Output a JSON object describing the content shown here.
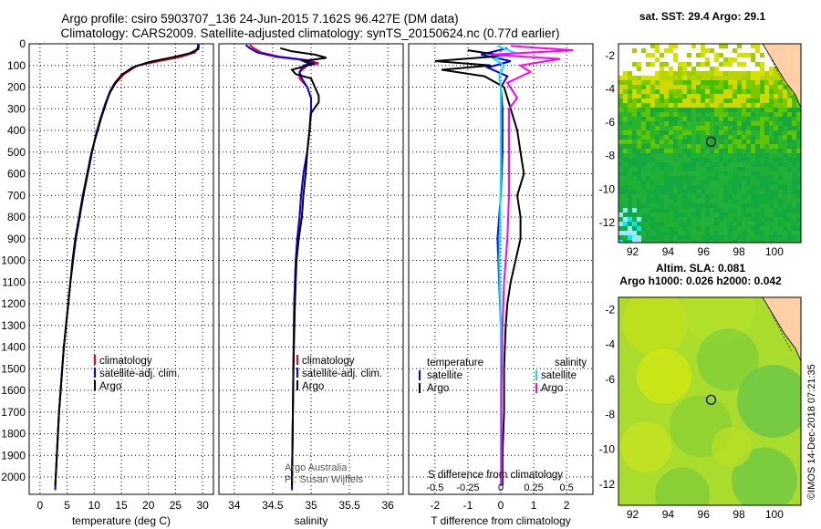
{
  "header": {
    "line1": "Argo profile: csiro 5903707_136 24-Jun-2015 7.162S 96.427E (DM data)",
    "line2": "Climatology: CARS2009. Satellite-adjusted climatology: synTS_20150624.nc (0.77d earlier)"
  },
  "credit": "©IMOS 14-Dec-2018 07:21:35",
  "colors": {
    "climatology": "#ff0000",
    "satellite": "#0000ff",
    "argo": "#000000",
    "sal_satellite": "#00e5ff",
    "sal_argo": "#ff00ff"
  },
  "depth_ticks": [
    0,
    100,
    200,
    300,
    400,
    500,
    600,
    700,
    800,
    900,
    1000,
    1100,
    1200,
    1300,
    1400,
    1500,
    1600,
    1700,
    1800,
    1900,
    2000
  ],
  "chart_data": [
    {
      "type": "line",
      "xlabel": "temperature (deg C)",
      "xlim": [
        -2,
        32
      ],
      "ylim": [
        2080,
        0
      ],
      "xticks": [
        "0",
        "5",
        "10",
        "15",
        "20",
        "25",
        "30"
      ],
      "xtick_values": [
        0,
        5,
        10,
        15,
        20,
        25,
        30
      ],
      "legend": [
        "climatology",
        "satellite-adj. clim.",
        "Argo"
      ],
      "series": [
        {
          "name": "climatology",
          "color": "#ff0000",
          "points": [
            [
              29.2,
              0
            ],
            [
              29.1,
              20
            ],
            [
              28.6,
              40
            ],
            [
              26,
              60
            ],
            [
              22,
              80
            ],
            [
              18,
              100
            ],
            [
              15.5,
              140
            ],
            [
              14,
              180
            ],
            [
              13,
              220
            ],
            [
              12,
              280
            ],
            [
              11.2,
              350
            ],
            [
              10.3,
              420
            ],
            [
              9.6,
              500
            ],
            [
              8.8,
              600
            ],
            [
              8,
              700
            ],
            [
              7.3,
              800
            ],
            [
              6.6,
              900
            ],
            [
              6.1,
              1000
            ],
            [
              5.6,
              1100
            ],
            [
              5.2,
              1200
            ],
            [
              4.8,
              1300
            ],
            [
              4.4,
              1400
            ],
            [
              4.1,
              1500
            ],
            [
              3.8,
              1600
            ],
            [
              3.5,
              1700
            ],
            [
              3.3,
              1800
            ],
            [
              3.1,
              1900
            ],
            [
              2.9,
              2000
            ],
            [
              2.8,
              2060
            ]
          ]
        },
        {
          "name": "satellite-adj. clim.",
          "color": "#0000ff",
          "points": [
            [
              29.2,
              0
            ],
            [
              29.1,
              20
            ],
            [
              28.3,
              40
            ],
            [
              25,
              60
            ],
            [
              21,
              80
            ],
            [
              17.5,
              105
            ],
            [
              15.2,
              140
            ],
            [
              13.8,
              180
            ],
            [
              12.9,
              220
            ],
            [
              12,
              280
            ],
            [
              11.1,
              350
            ],
            [
              10.3,
              420
            ],
            [
              9.6,
              500
            ],
            [
              8.8,
              600
            ],
            [
              8,
              700
            ],
            [
              7.3,
              800
            ],
            [
              6.6,
              900
            ],
            [
              6.1,
              1000
            ],
            [
              5.6,
              1100
            ],
            [
              5.2,
              1200
            ],
            [
              4.8,
              1300
            ],
            [
              4.4,
              1400
            ],
            [
              4.1,
              1500
            ],
            [
              3.8,
              1600
            ],
            [
              3.5,
              1700
            ],
            [
              3.3,
              1800
            ],
            [
              3.1,
              1900
            ],
            [
              2.9,
              2000
            ],
            [
              2.8,
              2060
            ]
          ]
        },
        {
          "name": "Argo",
          "color": "#000000",
          "points": [
            [
              29.3,
              5
            ],
            [
              29.2,
              25
            ],
            [
              27.5,
              45
            ],
            [
              24,
              65
            ],
            [
              20,
              85
            ],
            [
              17,
              110
            ],
            [
              15,
              145
            ],
            [
              13.8,
              185
            ],
            [
              12.8,
              230
            ],
            [
              12.1,
              280
            ],
            [
              11.2,
              350
            ],
            [
              10.4,
              420
            ],
            [
              9.5,
              500
            ],
            [
              8.7,
              600
            ],
            [
              7.9,
              700
            ],
            [
              7.2,
              800
            ],
            [
              6.5,
              900
            ],
            [
              6,
              1000
            ],
            [
              5.6,
              1100
            ],
            [
              5.2,
              1200
            ],
            [
              4.8,
              1300
            ],
            [
              4.4,
              1400
            ],
            [
              4.1,
              1500
            ],
            [
              3.8,
              1600
            ],
            [
              3.5,
              1700
            ],
            [
              3.3,
              1800
            ],
            [
              3.1,
              1900
            ],
            [
              2.9,
              2000
            ],
            [
              2.8,
              2040
            ]
          ]
        }
      ]
    },
    {
      "type": "line",
      "xlabel": "salinity",
      "xlim": [
        33.8,
        36.2
      ],
      "ylim": [
        2080,
        0
      ],
      "xticks": [
        "34",
        "34.5",
        "35",
        "35.5",
        "36"
      ],
      "xtick_values": [
        34,
        34.5,
        35,
        35.5,
        36
      ],
      "legend": [
        "climatology",
        "satellite-adj. clim.",
        "Argo"
      ],
      "annotation": [
        "Argo Australia",
        "PI: Susan Wijffels"
      ],
      "series": [
        {
          "name": "climatology",
          "color": "#ff0000",
          "points": [
            [
              34.2,
              5
            ],
            [
              34.25,
              20
            ],
            [
              34.35,
              40
            ],
            [
              34.6,
              60
            ],
            [
              34.95,
              75
            ],
            [
              35.1,
              90
            ],
            [
              34.95,
              100
            ],
            [
              34.85,
              130
            ],
            [
              34.85,
              160
            ],
            [
              34.95,
              200
            ],
            [
              35.0,
              250
            ],
            [
              35.0,
              300
            ],
            [
              34.98,
              400
            ],
            [
              34.95,
              500
            ],
            [
              34.9,
              600
            ],
            [
              34.87,
              700
            ],
            [
              34.85,
              800
            ],
            [
              34.82,
              900
            ],
            [
              34.8,
              1000
            ],
            [
              34.78,
              1200
            ],
            [
              34.77,
              1500
            ],
            [
              34.76,
              1800
            ],
            [
              34.75,
              2060
            ]
          ]
        },
        {
          "name": "satellite-adj. clim.",
          "color": "#0000ff",
          "points": [
            [
              34.15,
              5
            ],
            [
              34.2,
              20
            ],
            [
              34.3,
              40
            ],
            [
              34.55,
              60
            ],
            [
              34.9,
              75
            ],
            [
              35.05,
              90
            ],
            [
              34.9,
              100
            ],
            [
              34.85,
              130
            ],
            [
              34.88,
              160
            ],
            [
              34.95,
              200
            ],
            [
              35.0,
              250
            ],
            [
              35.0,
              300
            ],
            [
              34.98,
              400
            ],
            [
              34.95,
              500
            ],
            [
              34.9,
              600
            ],
            [
              34.87,
              700
            ],
            [
              34.85,
              800
            ],
            [
              34.82,
              900
            ],
            [
              34.8,
              1000
            ],
            [
              34.78,
              1200
            ],
            [
              34.77,
              1500
            ],
            [
              34.76,
              1800
            ],
            [
              34.75,
              2060
            ]
          ]
        },
        {
          "name": "Argo",
          "color": "#000000",
          "points": [
            [
              34.6,
              20
            ],
            [
              34.75,
              35
            ],
            [
              35.05,
              50
            ],
            [
              35.2,
              65
            ],
            [
              34.9,
              80
            ],
            [
              35.0,
              95
            ],
            [
              34.75,
              120
            ],
            [
              34.8,
              140
            ],
            [
              35.0,
              160
            ],
            [
              35.05,
              200
            ],
            [
              35.1,
              240
            ],
            [
              35.1,
              270
            ],
            [
              35.0,
              320
            ],
            [
              34.98,
              400
            ],
            [
              34.95,
              500
            ],
            [
              34.93,
              600
            ],
            [
              34.9,
              700
            ],
            [
              34.88,
              800
            ],
            [
              34.84,
              900
            ],
            [
              34.81,
              1000
            ],
            [
              34.79,
              1200
            ],
            [
              34.77,
              1500
            ],
            [
              34.76,
              1800
            ],
            [
              34.75,
              2040
            ]
          ]
        }
      ]
    },
    {
      "type": "line",
      "xlabel": "T difference from climatology",
      "xlim": [
        -2.8,
        2.8
      ],
      "ylim": [
        2080,
        0
      ],
      "xticks": [
        "-2",
        "-1",
        "0",
        "1",
        "2"
      ],
      "xtick_values": [
        -2,
        -1,
        0,
        1,
        2
      ],
      "secondary_label": "S difference from climatology",
      "secondary_xticks": [
        "-0.5",
        "-0.25",
        "0",
        "0.25",
        "0.5"
      ],
      "legend_left_title": "temperature",
      "legend_right_title": "salinity",
      "legend_left": [
        "satellite",
        "Argo"
      ],
      "legend_right": [
        "satellite",
        "Argo"
      ],
      "series": [
        {
          "name": "T satellite",
          "color": "#0000ff",
          "points": [
            [
              0.2,
              20
            ],
            [
              -0.6,
              50
            ],
            [
              0.3,
              80
            ],
            [
              -0.4,
              110
            ],
            [
              0.2,
              150
            ],
            [
              0,
              200
            ],
            [
              0.05,
              300
            ],
            [
              0.05,
              500
            ],
            [
              0,
              700
            ],
            [
              -0.1,
              900
            ],
            [
              -0.05,
              1100
            ],
            [
              0,
              1300
            ],
            [
              0,
              1600
            ],
            [
              0,
              2000
            ],
            [
              0,
              2040
            ]
          ]
        },
        {
          "name": "T Argo",
          "color": "#000000",
          "points": [
            [
              -1.0,
              30
            ],
            [
              0.1,
              55
            ],
            [
              -2.0,
              80
            ],
            [
              -0.3,
              100
            ],
            [
              -1.8,
              120
            ],
            [
              -0.5,
              150
            ],
            [
              0.1,
              200
            ],
            [
              0.3,
              300
            ],
            [
              0.5,
              400
            ],
            [
              0.6,
              500
            ],
            [
              0.7,
              600
            ],
            [
              0.5,
              700
            ],
            [
              0.6,
              800
            ],
            [
              0.6,
              900
            ],
            [
              0.45,
              1000
            ],
            [
              0.3,
              1100
            ],
            [
              0.2,
              1200
            ],
            [
              0.15,
              1300
            ],
            [
              0.1,
              1500
            ],
            [
              0.1,
              1700
            ],
            [
              0.05,
              1900
            ],
            [
              0.05,
              2040
            ]
          ]
        },
        {
          "name": "S satellite",
          "color": "#00e5ff",
          "points": [
            [
              -0.1,
              10
            ],
            [
              0.4,
              40
            ],
            [
              -0.2,
              70
            ],
            [
              0.1,
              100
            ],
            [
              -0.05,
              150
            ],
            [
              0,
              200
            ],
            [
              0,
              400
            ],
            [
              0,
              600
            ],
            [
              -0.02,
              800
            ],
            [
              -0.05,
              1000
            ],
            [
              0,
              1300
            ],
            [
              0,
              1700
            ],
            [
              0,
              2040
            ]
          ]
        },
        {
          "name": "S Argo",
          "color": "#ff00ff",
          "points": [
            [
              0.3,
              10
            ],
            [
              2.2,
              30
            ],
            [
              -0.3,
              50
            ],
            [
              1.8,
              70
            ],
            [
              0.6,
              100
            ],
            [
              0.9,
              130
            ],
            [
              0.2,
              180
            ],
            [
              0.5,
              250
            ],
            [
              0.25,
              300
            ],
            [
              0.25,
              500
            ],
            [
              0.25,
              700
            ],
            [
              0.2,
              900
            ],
            [
              0.1,
              1100
            ],
            [
              0.05,
              1300
            ],
            [
              0.02,
              1600
            ],
            [
              0.02,
              2040
            ]
          ]
        }
      ]
    }
  ],
  "maps": [
    {
      "title": "sat. SST: 29.4 Argo: 29.1",
      "kind": "sst",
      "xticks": [
        "92",
        "94",
        "96",
        "98",
        "100"
      ],
      "yticks": [
        "-2",
        "-4",
        "-6",
        "-8",
        "-10",
        "-12"
      ],
      "float_lon": 96.427,
      "float_lat": -7.162
    },
    {
      "title_lines": [
        "Altim. SLA: 0.081",
        "Argo h1000: 0.026 h2000: 0.042"
      ],
      "kind": "sla",
      "xticks": [
        "92",
        "94",
        "96",
        "98",
        "100"
      ],
      "yticks": [
        "-2",
        "-4",
        "-6",
        "-8",
        "-10",
        "-12"
      ],
      "float_lon": 96.427,
      "float_lat": -7.162
    }
  ]
}
